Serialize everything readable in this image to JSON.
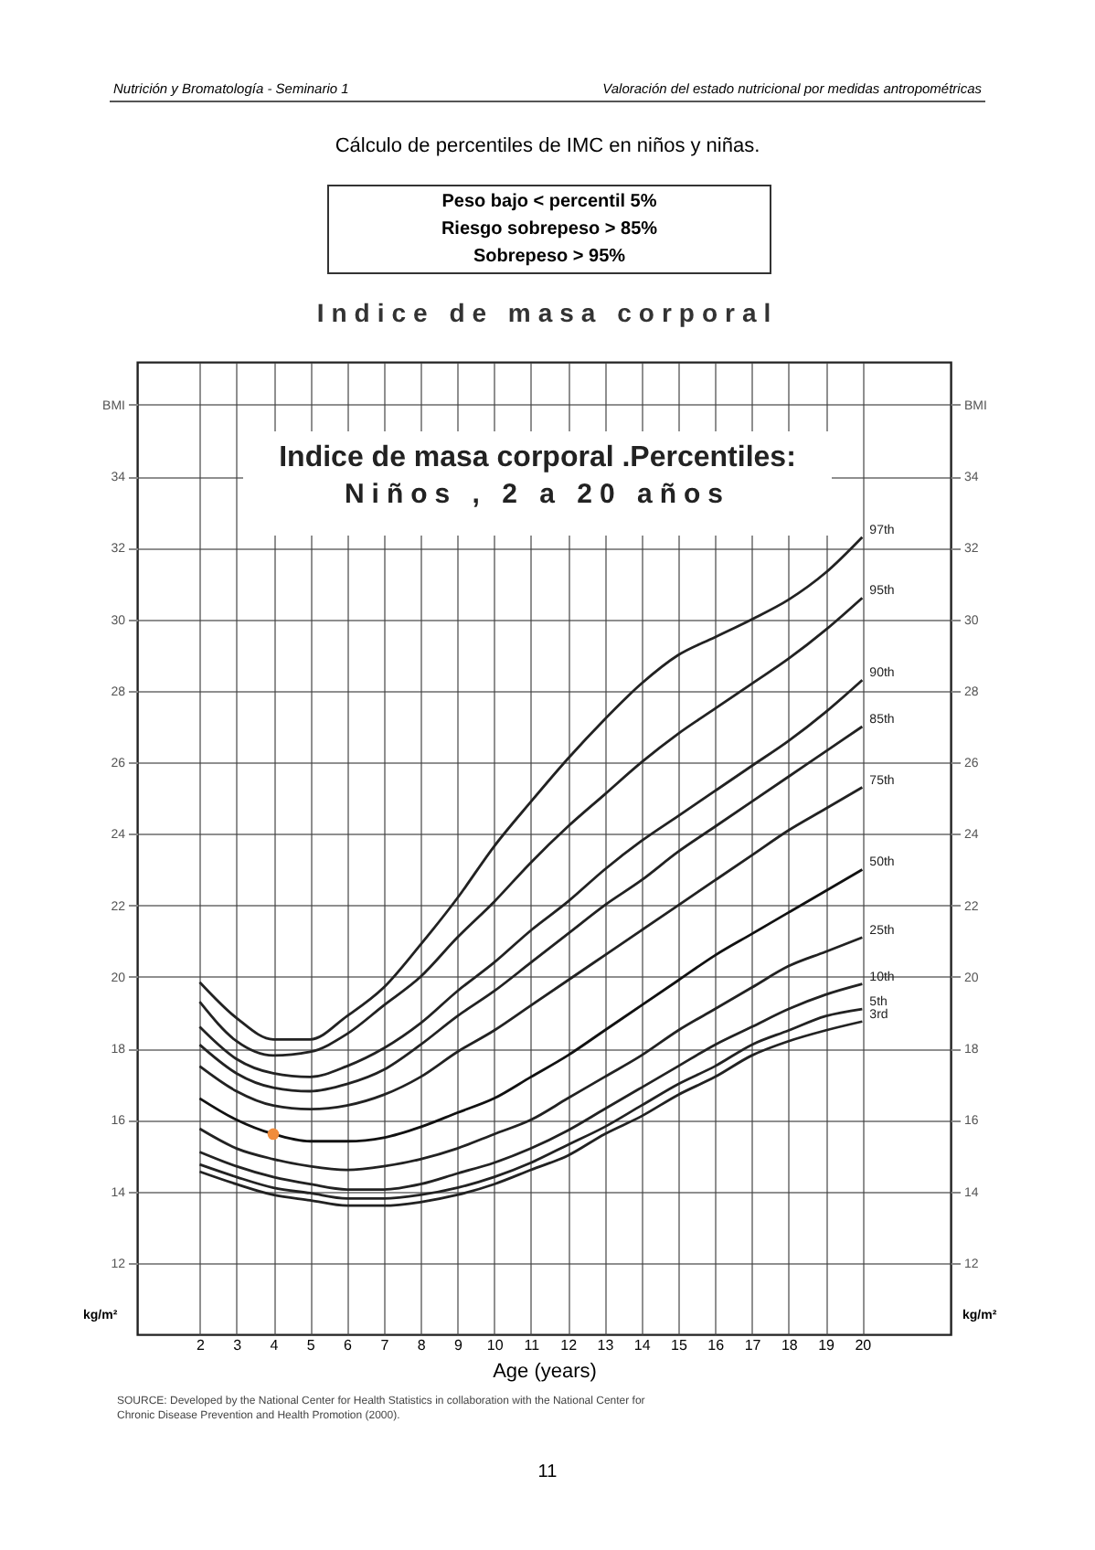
{
  "chart_data": {
    "type": "line",
    "title": "Indice de masa corporal",
    "subtitle": "Cálculo de percentiles de IMC en niños y niñas.",
    "xlabel": "Age (years)",
    "ylabel": "kg/m²",
    "y2label": "kg/m²",
    "annotations": [
      "Nutrición y Bromatología - Seminario 1",
      "Valoración del estado nutricional por medidas antropométricas",
      "Peso bajo < percentil 5%",
      "Riesgo sobrepeso > 85%",
      "Sobrepeso > 95%",
      "Indice de masa corporal .Percentiles:",
      "Niños , 2 a 20 años",
      "SOURCE: Developed by the National Center for Health Statistics in collaboration with the National Center for Chronic Disease Prevention and Health Promotion (2000).",
      "11"
    ],
    "x": [
      2,
      3,
      4,
      5,
      6,
      7,
      8,
      9,
      10,
      11,
      12,
      13,
      14,
      15,
      16,
      17,
      18,
      19,
      20
    ],
    "series": [
      {
        "name": "97th",
        "color": "#222222",
        "values": [
          19.85,
          18.85,
          18.25,
          18.25,
          18.9,
          19.7,
          20.9,
          22.2,
          23.65,
          24.9,
          26.1,
          27.2,
          28.2,
          29.0,
          29.5,
          30.0,
          30.55,
          31.3,
          32.3
        ]
      },
      {
        "name": "95th",
        "color": "#222222",
        "values": [
          19.3,
          18.2,
          17.8,
          17.9,
          18.4,
          19.2,
          20.0,
          21.1,
          22.1,
          23.2,
          24.2,
          25.1,
          26.0,
          26.8,
          27.5,
          28.2,
          28.9,
          29.7,
          30.6
        ]
      },
      {
        "name": "90th",
        "color": "#222222",
        "values": [
          18.6,
          17.7,
          17.3,
          17.2,
          17.5,
          18.0,
          18.7,
          19.6,
          20.4,
          21.3,
          22.1,
          23.0,
          23.8,
          24.5,
          25.2,
          25.9,
          26.6,
          27.4,
          28.3
        ]
      },
      {
        "name": "85th",
        "color": "#222222",
        "values": [
          18.1,
          17.3,
          16.9,
          16.8,
          17.0,
          17.4,
          18.1,
          18.9,
          19.6,
          20.4,
          21.2,
          22.0,
          22.7,
          23.5,
          24.2,
          24.9,
          25.6,
          26.3,
          27.0
        ]
      },
      {
        "name": "75th",
        "color": "#222222",
        "values": [
          17.5,
          16.8,
          16.4,
          16.3,
          16.4,
          16.7,
          17.2,
          17.9,
          18.5,
          19.2,
          19.9,
          20.6,
          21.3,
          22.0,
          22.7,
          23.4,
          24.1,
          24.7,
          25.3
        ]
      },
      {
        "name": "50th",
        "color": "#111111",
        "values": [
          16.6,
          16.0,
          15.6,
          15.4,
          15.4,
          15.5,
          15.8,
          16.2,
          16.6,
          17.2,
          17.8,
          18.5,
          19.2,
          19.9,
          20.6,
          21.2,
          21.8,
          22.4,
          23.0
        ]
      },
      {
        "name": "25th",
        "color": "#222222",
        "values": [
          15.75,
          15.2,
          14.9,
          14.7,
          14.6,
          14.7,
          14.9,
          15.2,
          15.6,
          16.0,
          16.6,
          17.2,
          17.8,
          18.5,
          19.1,
          19.7,
          20.3,
          20.7,
          21.1
        ]
      },
      {
        "name": "10th",
        "color": "#222222",
        "values": [
          15.1,
          14.7,
          14.4,
          14.2,
          14.05,
          14.05,
          14.2,
          14.5,
          14.8,
          15.2,
          15.7,
          16.3,
          16.9,
          17.5,
          18.1,
          18.6,
          19.1,
          19.5,
          19.8
        ]
      },
      {
        "name": "5th",
        "color": "#222222",
        "values": [
          14.75,
          14.4,
          14.1,
          13.95,
          13.8,
          13.8,
          13.9,
          14.1,
          14.4,
          14.8,
          15.3,
          15.8,
          16.4,
          17.0,
          17.5,
          18.1,
          18.5,
          18.9,
          19.1
        ]
      },
      {
        "name": "3rd",
        "color": "#222222",
        "values": [
          14.55,
          14.2,
          13.9,
          13.75,
          13.6,
          13.6,
          13.7,
          13.9,
          14.2,
          14.6,
          15.0,
          15.6,
          16.1,
          16.7,
          17.2,
          17.8,
          18.2,
          18.5,
          18.75
        ]
      },
      {
        "type": "scatter",
        "color": "#f08c3c",
        "x": [
          4
        ],
        "values": [
          15.6
        ]
      }
    ],
    "xlim": [
      0.3,
      22.4
    ],
    "xticks": [
      2,
      3,
      4,
      5,
      6,
      7,
      8,
      9,
      10,
      11,
      12,
      13,
      14,
      15,
      16,
      17,
      18,
      19,
      20
    ],
    "ylim": [
      10,
      37.2
    ],
    "yticks": [
      12,
      14,
      16,
      18,
      20,
      22,
      24,
      26,
      28,
      30,
      32,
      34,
      {
        "value": 36,
        "label": "BMI"
      }
    ],
    "y2lim": [
      10,
      37.2
    ],
    "y2ticks": [
      12,
      14,
      16,
      18,
      20,
      22,
      24,
      26,
      28,
      30,
      32,
      34,
      {
        "value": 36,
        "label": "BMI"
      }
    ],
    "grid": true,
    "legend": false
  }
}
